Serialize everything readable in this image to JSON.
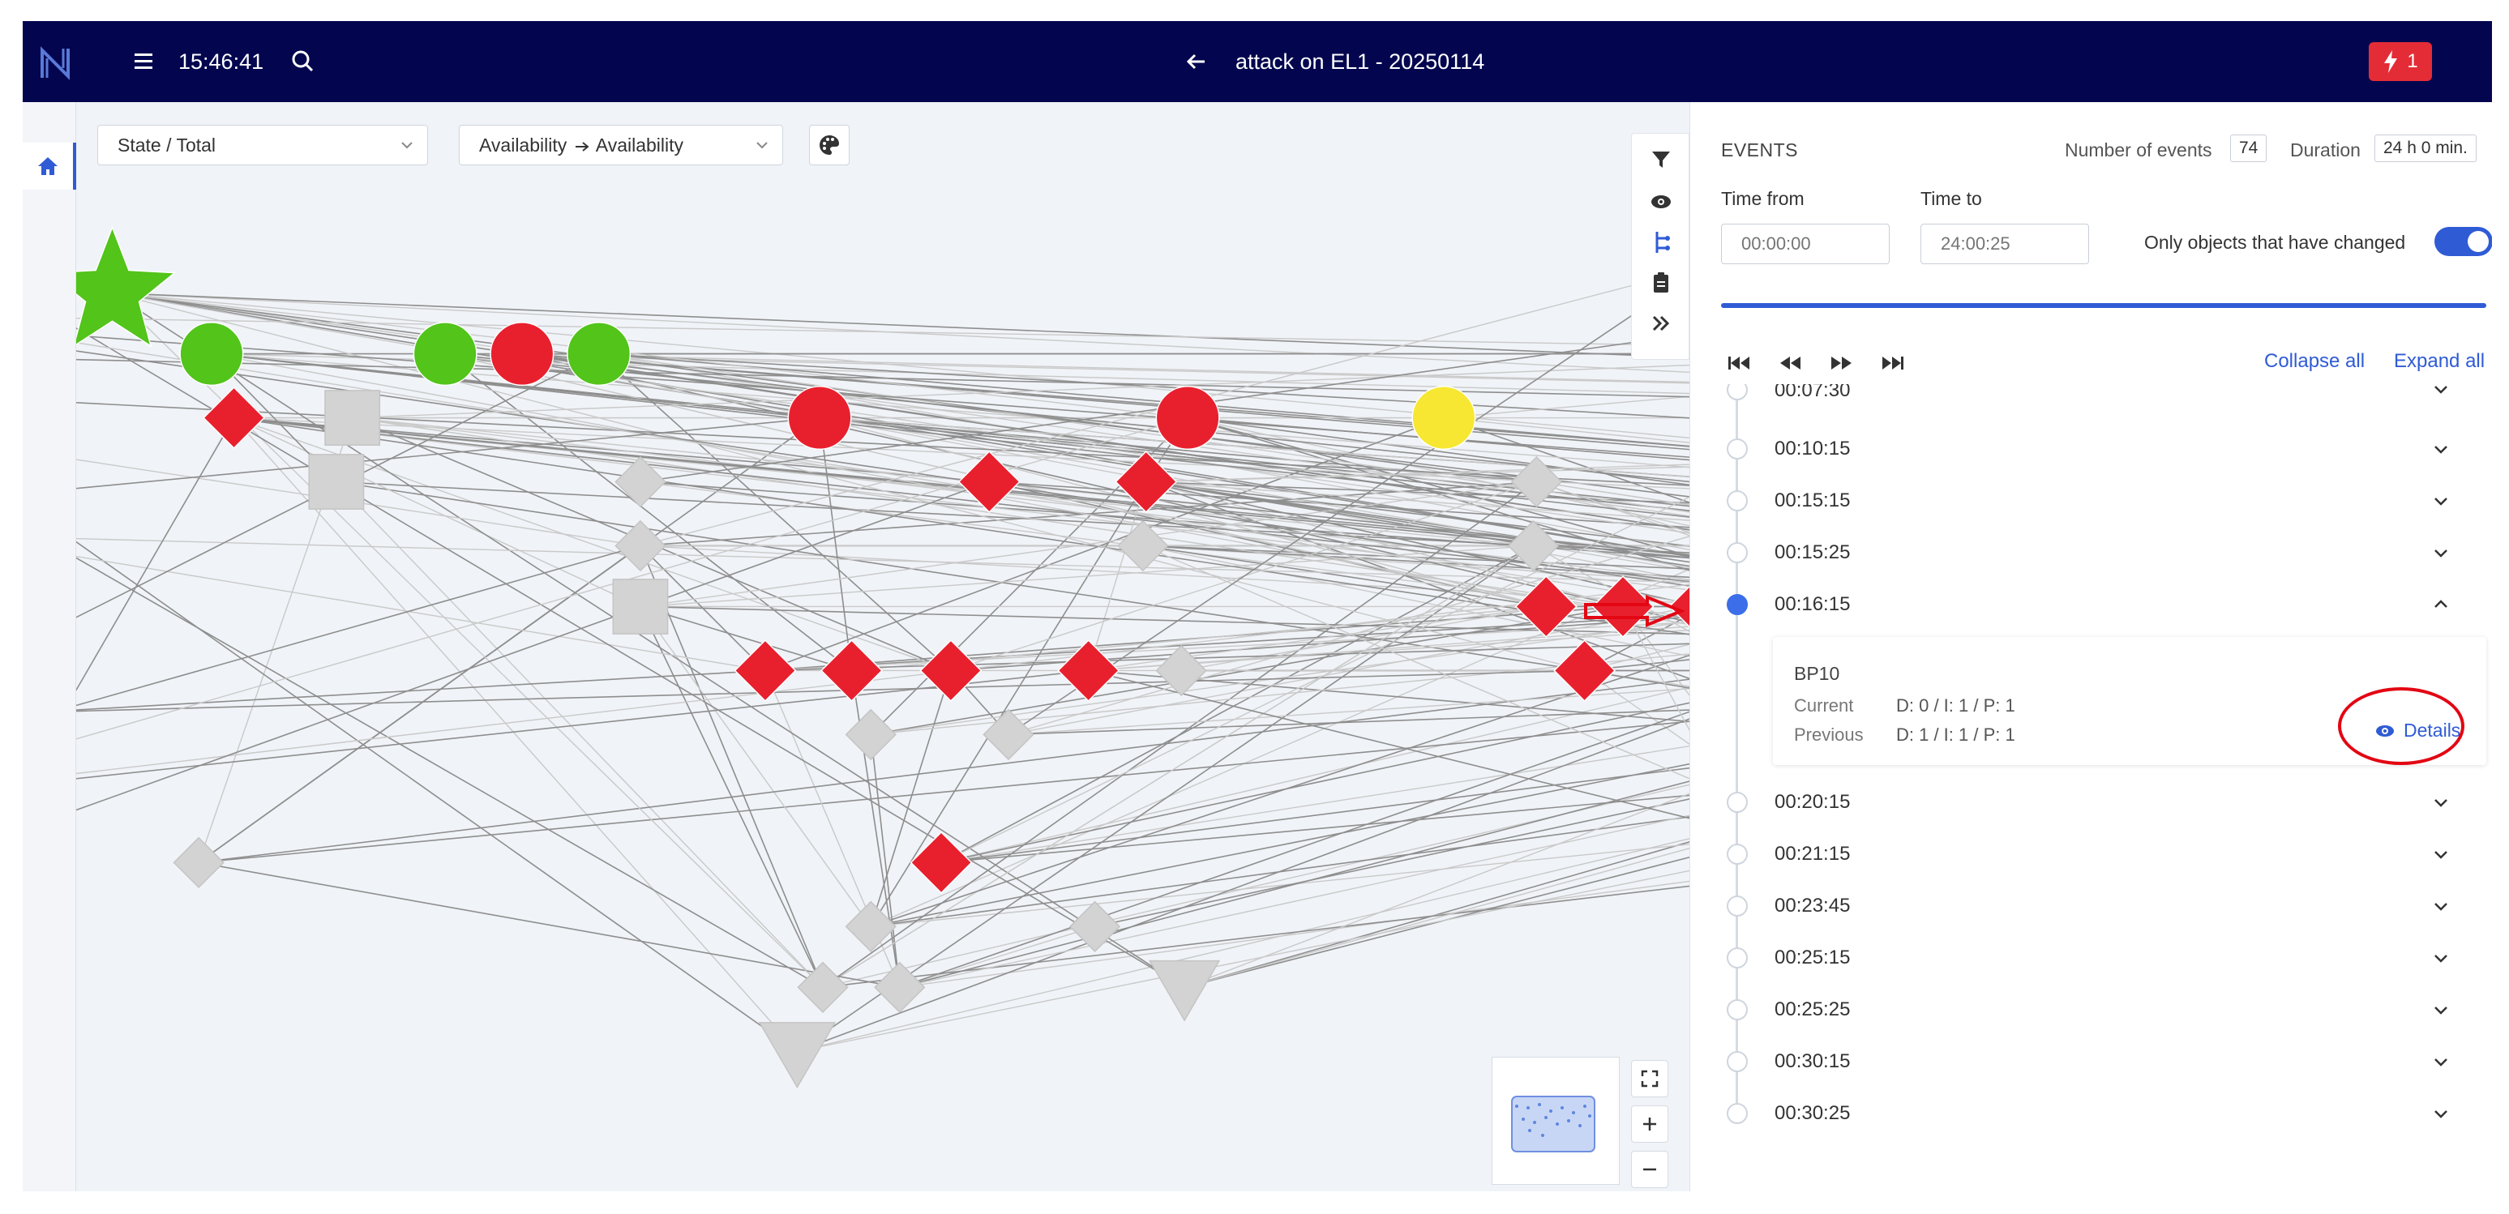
{
  "header": {
    "clock": "15:46:41",
    "title": "attack on EL1 - 20250114",
    "alert_count": "1",
    "bg_color": "#03064f",
    "alert_color": "#e42c36"
  },
  "graph_toolbar": {
    "view_select": "State / Total",
    "mapping_select_from": "Availability",
    "mapping_select_to": "Availability"
  },
  "events": {
    "heading": "EVENTS",
    "count_label": "Number of events",
    "count": "74",
    "duration_label": "Duration",
    "duration": "24 h 0 min.",
    "time_from_label": "Time from",
    "time_from_placeholder": "00:00:00",
    "time_to_label": "Time to",
    "time_to_placeholder": "24:00:25",
    "only_changed_label": "Only objects that have changed",
    "only_changed": true,
    "collapse_all": "Collapse all",
    "expand_all": "Expand all",
    "progress": 1.0,
    "accent": "#2f5bd5",
    "items": [
      {
        "time": "00:07:30",
        "expanded": false
      },
      {
        "time": "00:10:15",
        "expanded": false
      },
      {
        "time": "00:15:15",
        "expanded": false
      },
      {
        "time": "00:15:25",
        "expanded": false
      },
      {
        "time": "00:16:15",
        "expanded": true
      },
      {
        "time": "00:20:15",
        "expanded": false
      },
      {
        "time": "00:21:15",
        "expanded": false
      },
      {
        "time": "00:23:45",
        "expanded": false
      },
      {
        "time": "00:25:15",
        "expanded": false
      },
      {
        "time": "00:25:25",
        "expanded": false
      },
      {
        "time": "00:30:15",
        "expanded": false
      },
      {
        "time": "00:30:25",
        "expanded": false
      }
    ],
    "detail": {
      "name": "BP10",
      "current_label": "Current",
      "current_value": "D: 0 / I: 1 / P: 1",
      "previous_label": "Previous",
      "previous_value": "D: 1 / I: 1 / P: 1",
      "details_link": "Details"
    }
  },
  "node_colors": {
    "red": "#e8202e",
    "green": "#52c41a",
    "yellow": "#f7e733",
    "gray": "#d3d3d3"
  }
}
